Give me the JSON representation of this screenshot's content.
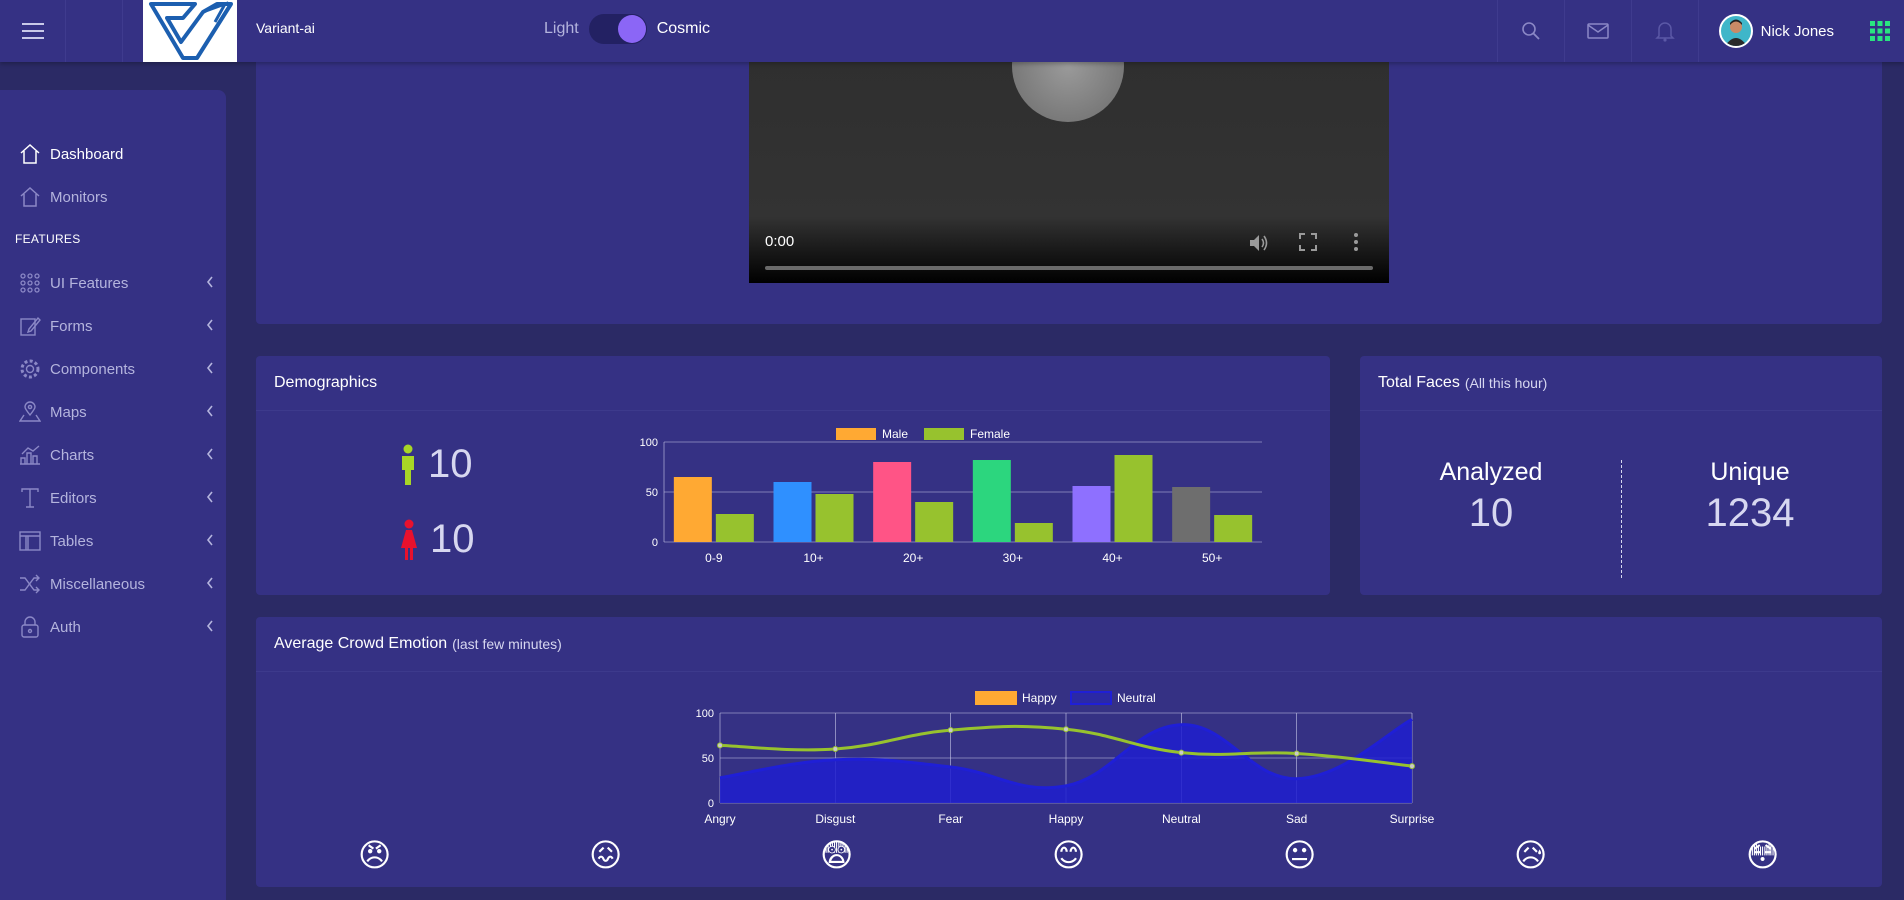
{
  "header": {
    "brand": "Variant-ai",
    "theme_light_label": "Light",
    "theme_cosmic_label": "Cosmic",
    "user_name": "Nick Jones",
    "icons": [
      "menu-icon",
      "search-icon",
      "mail-icon",
      "bell-icon",
      "apps-grid-icon"
    ]
  },
  "sidebar": {
    "items": [
      {
        "label": "Dashboard",
        "icon": "home-icon",
        "active": true
      },
      {
        "label": "Monitors",
        "icon": "home-icon",
        "active": false
      }
    ],
    "section_label": "FEATURES",
    "features": [
      {
        "label": "UI Features",
        "icon": "keypad-icon"
      },
      {
        "label": "Forms",
        "icon": "edit-icon"
      },
      {
        "label": "Components",
        "icon": "gear-icon"
      },
      {
        "label": "Maps",
        "icon": "map-icon"
      },
      {
        "label": "Charts",
        "icon": "bar-chart-icon"
      },
      {
        "label": "Editors",
        "icon": "text-icon"
      },
      {
        "label": "Tables",
        "icon": "layout-icon"
      },
      {
        "label": "Miscellaneous",
        "icon": "shuffle-icon"
      },
      {
        "label": "Auth",
        "icon": "lock-icon"
      }
    ]
  },
  "video": {
    "time": "0:00"
  },
  "demographics": {
    "title": "Demographics",
    "male_count": "10",
    "female_count": "10",
    "male_color": "#a8d626",
    "female_color": "#e8112d"
  },
  "total_faces": {
    "title": "Total Faces",
    "subtitle": "(All this hour)",
    "analyzed_label": "Analyzed",
    "analyzed_value": "10",
    "unique_label": "Unique",
    "unique_value": "1234"
  },
  "emotion": {
    "title": "Average Crowd Emotion",
    "subtitle": "(last few minutes)",
    "emojis": [
      "😠",
      "😖",
      "😨",
      "😊",
      "😐",
      "😥",
      "😳"
    ]
  },
  "chart_data": [
    {
      "type": "bar",
      "categories": [
        "0-9",
        "10+",
        "20+",
        "30+",
        "40+",
        "50+"
      ],
      "series": [
        {
          "name": "Male",
          "values": [
            65,
            60,
            80,
            82,
            56,
            55
          ],
          "colors": [
            "#ffa933",
            "#2f90ff",
            "#ff5486",
            "#2cd67e",
            "#8e70ff",
            "#6e6e6e"
          ]
        },
        {
          "name": "Female",
          "values": [
            28,
            48,
            40,
            19,
            87,
            27
          ],
          "color": "#97c22e"
        }
      ],
      "legend": "top",
      "yticks": [
        0,
        50,
        100
      ],
      "ylim": [
        0,
        100
      ],
      "grid": true
    },
    {
      "type": "area",
      "categories": [
        "Angry",
        "Disgust",
        "Fear",
        "Happy",
        "Neutral",
        "Sad",
        "Surprise"
      ],
      "series": [
        {
          "name": "Happy",
          "values": [
            64,
            60,
            81,
            82,
            56,
            55,
            41
          ],
          "color": "#97c22e",
          "legend_color": "#ffa933"
        },
        {
          "name": "Neutral",
          "values": [
            28,
            48,
            40,
            19,
            87,
            27,
            93
          ],
          "color": "#1f1fd6",
          "fill": "#1f1fcf"
        }
      ],
      "legend": "top",
      "yticks": [
        0,
        50,
        100
      ],
      "ylim": [
        0,
        100
      ],
      "grid": true
    }
  ]
}
